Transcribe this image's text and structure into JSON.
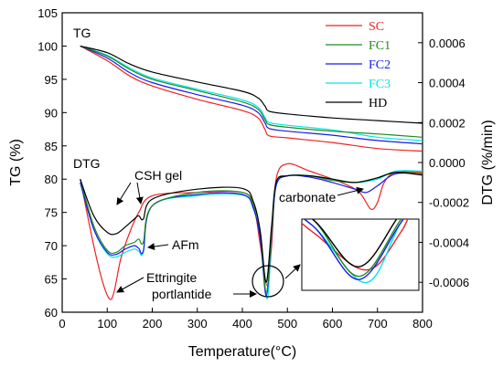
{
  "chart_data": {
    "type": "line",
    "xlabel": "Temperature(°C)",
    "ylabel_left": "TG (%)",
    "ylabel_right": "DTG (%/min)",
    "xlim": [
      0,
      800
    ],
    "ylim_left": [
      60,
      105
    ],
    "ylim_right": [
      -0.00075,
      0.00075
    ],
    "x_ticks": [
      "0",
      "100",
      "200",
      "300",
      "400",
      "500",
      "600",
      "700",
      "800"
    ],
    "y_left_ticks": [
      "60",
      "65",
      "70",
      "75",
      "80",
      "85",
      "90",
      "95",
      "100",
      "105"
    ],
    "y_right_ticks": [
      "-0.0006",
      "-0.0004",
      "-0.0002",
      "0.0000",
      "0.0002",
      "0.0004",
      "0.0006"
    ],
    "panel_labels": {
      "tg": "TG",
      "dtg": "DTG"
    },
    "annotations": {
      "csh": "CSH gel",
      "afm": "AFm",
      "ettringite": "Ettringite",
      "portlandite": "portlantide",
      "carbonate": "carbonate"
    },
    "legend_placement": "top-right",
    "series": [
      {
        "name": "SC",
        "color": "#ee2222",
        "tg": [
          [
            40,
            100
          ],
          [
            100,
            97.8
          ],
          [
            150,
            95.5
          ],
          [
            200,
            94
          ],
          [
            300,
            92
          ],
          [
            400,
            90.3
          ],
          [
            435,
            89.2
          ],
          [
            450,
            87.5
          ],
          [
            460,
            86.5
          ],
          [
            500,
            86.2
          ],
          [
            600,
            85.5
          ],
          [
            700,
            84.6
          ],
          [
            800,
            84.2
          ]
        ],
        "dtg": [
          [
            40,
            80
          ],
          [
            70,
            70
          ],
          [
            90,
            64.5
          ],
          [
            105,
            62
          ],
          [
            115,
            63
          ],
          [
            130,
            68
          ],
          [
            150,
            72
          ],
          [
            170,
            75
          ],
          [
            200,
            77.5
          ],
          [
            300,
            78
          ],
          [
            400,
            78
          ],
          [
            425,
            76
          ],
          [
            440,
            70
          ],
          [
            455,
            64
          ],
          [
            465,
            70
          ],
          [
            475,
            80
          ],
          [
            500,
            82.3
          ],
          [
            550,
            81.2
          ],
          [
            620,
            79.5
          ],
          [
            660,
            78
          ],
          [
            685,
            75.5
          ],
          [
            700,
            76.5
          ],
          [
            715,
            79.5
          ],
          [
            740,
            81
          ],
          [
            800,
            81
          ]
        ]
      },
      {
        "name": "FC1",
        "color": "#1e8c1e",
        "tg": [
          [
            40,
            100
          ],
          [
            100,
            98.5
          ],
          [
            150,
            96.5
          ],
          [
            200,
            95
          ],
          [
            300,
            93.3
          ],
          [
            400,
            91.6
          ],
          [
            435,
            90.5
          ],
          [
            450,
            89
          ],
          [
            460,
            88.2
          ],
          [
            500,
            87.8
          ],
          [
            600,
            87.2
          ],
          [
            700,
            86.8
          ],
          [
            800,
            86.3
          ]
        ],
        "dtg": [
          [
            40,
            80
          ],
          [
            70,
            73
          ],
          [
            100,
            69.3
          ],
          [
            120,
            69
          ],
          [
            140,
            70
          ],
          [
            160,
            70.5
          ],
          [
            170,
            71
          ],
          [
            180,
            70.5
          ],
          [
            200,
            76
          ],
          [
            300,
            78
          ],
          [
            400,
            78
          ],
          [
            425,
            76
          ],
          [
            440,
            72
          ],
          [
            453,
            63
          ],
          [
            465,
            72
          ],
          [
            475,
            79.5
          ],
          [
            500,
            80.5
          ],
          [
            550,
            80.5
          ],
          [
            600,
            79.8
          ],
          [
            650,
            79.5
          ],
          [
            690,
            80
          ],
          [
            740,
            81
          ],
          [
            800,
            80.8
          ]
        ]
      },
      {
        "name": "FC2",
        "color": "#1a1aee",
        "tg": [
          [
            40,
            100
          ],
          [
            100,
            98.2
          ],
          [
            150,
            96
          ],
          [
            200,
            94.5
          ],
          [
            300,
            92.7
          ],
          [
            400,
            91.1
          ],
          [
            435,
            90
          ],
          [
            450,
            88.5
          ],
          [
            460,
            87.6
          ],
          [
            500,
            87.2
          ],
          [
            600,
            86.6
          ],
          [
            700,
            85.8
          ],
          [
            800,
            85.3
          ]
        ],
        "dtg": [
          [
            40,
            79.5
          ],
          [
            70,
            72.5
          ],
          [
            100,
            69
          ],
          [
            120,
            68.7
          ],
          [
            140,
            69.5
          ],
          [
            160,
            70
          ],
          [
            170,
            69.6
          ],
          [
            180,
            69.2
          ],
          [
            200,
            76
          ],
          [
            300,
            77.7
          ],
          [
            400,
            77.7
          ],
          [
            425,
            75.5
          ],
          [
            440,
            71
          ],
          [
            453,
            62.5
          ],
          [
            465,
            71.5
          ],
          [
            475,
            79
          ],
          [
            500,
            80.5
          ],
          [
            550,
            80.3
          ],
          [
            600,
            79.5
          ],
          [
            650,
            78.5
          ],
          [
            675,
            78
          ],
          [
            700,
            79
          ],
          [
            740,
            80.8
          ],
          [
            800,
            80.8
          ]
        ]
      },
      {
        "name": "FC3",
        "color": "#00e6e6",
        "tg": [
          [
            40,
            100
          ],
          [
            100,
            98.6
          ],
          [
            150,
            96.7
          ],
          [
            200,
            95.2
          ],
          [
            300,
            93.5
          ],
          [
            400,
            91.9
          ],
          [
            435,
            90.8
          ],
          [
            450,
            89.3
          ],
          [
            460,
            88.5
          ],
          [
            500,
            88.1
          ],
          [
            600,
            87.4
          ],
          [
            700,
            86.3
          ],
          [
            800,
            85.8
          ]
        ],
        "dtg": [
          [
            40,
            79.5
          ],
          [
            70,
            72.5
          ],
          [
            100,
            68.8
          ],
          [
            120,
            68.3
          ],
          [
            140,
            69
          ],
          [
            160,
            69.5
          ],
          [
            170,
            69.2
          ],
          [
            180,
            69
          ],
          [
            200,
            76
          ],
          [
            300,
            77.5
          ],
          [
            400,
            77.6
          ],
          [
            425,
            75.5
          ],
          [
            440,
            71
          ],
          [
            455,
            62
          ],
          [
            465,
            71.5
          ],
          [
            475,
            79
          ],
          [
            500,
            80.5
          ],
          [
            550,
            80.5
          ],
          [
            600,
            80
          ],
          [
            650,
            79.5
          ],
          [
            700,
            80
          ],
          [
            740,
            81.2
          ],
          [
            800,
            81.2
          ]
        ]
      },
      {
        "name": "HD",
        "color": "#000000",
        "tg": [
          [
            40,
            100
          ],
          [
            100,
            99
          ],
          [
            150,
            97.3
          ],
          [
            200,
            96.1
          ],
          [
            300,
            94.6
          ],
          [
            400,
            93.2
          ],
          [
            435,
            92.2
          ],
          [
            450,
            91
          ],
          [
            460,
            90.2
          ],
          [
            500,
            89.8
          ],
          [
            600,
            89.2
          ],
          [
            700,
            88.8
          ],
          [
            800,
            88.4
          ]
        ],
        "dtg": [
          [
            40,
            80
          ],
          [
            70,
            74.5
          ],
          [
            100,
            72
          ],
          [
            120,
            71.8
          ],
          [
            140,
            72.8
          ],
          [
            160,
            74
          ],
          [
            170,
            74.5
          ],
          [
            180,
            74
          ],
          [
            200,
            77
          ],
          [
            300,
            78.5
          ],
          [
            400,
            78.6
          ],
          [
            425,
            76.5
          ],
          [
            440,
            72
          ],
          [
            453,
            64.5
          ],
          [
            465,
            73
          ],
          [
            475,
            79.5
          ],
          [
            500,
            80.5
          ],
          [
            550,
            80.5
          ],
          [
            600,
            80
          ],
          [
            650,
            79.5
          ],
          [
            700,
            80.2
          ],
          [
            740,
            81
          ],
          [
            800,
            80.6
          ]
        ]
      }
    ]
  }
}
